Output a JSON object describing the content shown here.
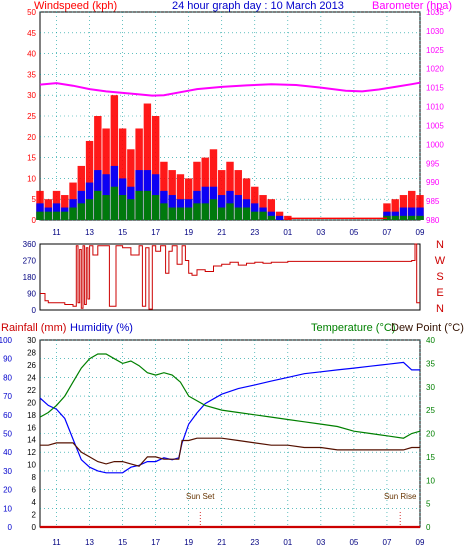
{
  "header": {
    "title": "24 hour graph day : 10 March 2013",
    "wind_label": "Windspeed (kph)",
    "baro_label": "Barometer (hpa)"
  },
  "lower_header": {
    "rain_label": "Rainfall (mm)",
    "humidity_label": "Humidity (%)",
    "temp_label": "Temperature (°C)",
    "dew_label": "Dew Point (°C)"
  },
  "colors": {
    "windspeed": "#ff0000",
    "wind_avg": "#0000ff",
    "wind_low": "#008000",
    "barometer": "#ff00ff",
    "direction": "#cc0000",
    "temperature": "#008000",
    "humidity": "#0000ff",
    "dewpoint": "#551100",
    "rain": "#cc0000",
    "grid": "#009999"
  },
  "chart_data": [
    {
      "type": "bar",
      "title": "Windspeed / Barometer",
      "xlabel": "",
      "ylabel": "Windspeed (kph)",
      "ylim": [
        0,
        50
      ],
      "y2label": "Barometer (hpa)",
      "y2lim": [
        980,
        1035
      ],
      "x_ticks": [
        "11",
        "13",
        "15",
        "17",
        "19",
        "21",
        "23",
        "01",
        "03",
        "05",
        "07",
        "09"
      ],
      "y_ticks": [
        0,
        5,
        10,
        15,
        20,
        25,
        30,
        35,
        40,
        45,
        50
      ],
      "y2_ticks": [
        980,
        985,
        990,
        995,
        1000,
        1005,
        1010,
        1015,
        1020,
        1025,
        1030,
        1035
      ],
      "grid": true,
      "x": [
        10.0,
        10.5,
        11.0,
        11.5,
        12.0,
        12.5,
        13.0,
        13.5,
        14.0,
        14.5,
        15.0,
        15.5,
        16.0,
        16.5,
        17.0,
        17.5,
        18.0,
        18.5,
        19.0,
        19.5,
        20.0,
        20.5,
        21.0,
        21.5,
        22.0,
        22.5,
        23.0,
        23.5,
        24.0,
        24.5,
        25.0,
        31.0,
        31.5,
        32.0,
        32.5,
        33.0
      ],
      "series": [
        {
          "name": "Windspeed (kph)",
          "kind": "bar",
          "values": [
            7,
            5,
            7,
            6,
            9,
            13,
            19,
            25,
            22,
            30,
            22,
            17,
            22,
            28,
            25,
            14,
            12,
            11,
            10,
            14,
            15,
            17,
            12,
            14,
            12,
            10,
            8,
            6,
            5,
            2,
            1,
            4,
            5,
            6,
            7,
            6
          ]
        },
        {
          "name": "",
          "kind": "bar",
          "values": [
            4,
            3,
            4,
            3,
            5,
            7,
            9,
            12,
            11,
            13,
            10,
            8,
            12,
            12,
            11,
            7,
            6,
            5,
            5,
            7,
            8,
            8,
            6,
            7,
            6,
            5,
            4,
            3,
            2,
            1,
            0,
            2,
            2,
            3,
            3,
            3
          ]
        },
        {
          "name": "",
          "kind": "bar",
          "values": [
            2,
            2,
            2,
            2,
            3,
            4,
            5,
            7,
            6,
            8,
            6,
            5,
            7,
            7,
            6,
            4,
            3,
            3,
            3,
            4,
            4,
            5,
            3,
            4,
            3,
            3,
            2,
            2,
            1,
            0,
            0,
            1,
            1,
            1,
            1,
            1
          ]
        }
      ],
      "barometer": {
        "x": [
          10.0,
          11.0,
          12.0,
          13.0,
          14.0,
          15.0,
          16.0,
          16.8,
          17.5,
          18.5,
          19.5,
          21.0,
          22.5,
          24.0,
          25.5,
          27.0,
          28.5,
          29.5,
          30.5,
          31.5,
          32.5,
          33.0
        ],
        "values": [
          1015.8,
          1016.2,
          1015.5,
          1014.6,
          1014.0,
          1013.6,
          1013.2,
          1012.9,
          1013.0,
          1013.8,
          1014.6,
          1015.2,
          1015.6,
          1015.9,
          1015.7,
          1015.0,
          1014.2,
          1014.0,
          1014.5,
          1015.2,
          1015.9,
          1016.3
        ]
      }
    },
    {
      "type": "line",
      "title": "Wind Direction",
      "ylim": [
        0,
        360
      ],
      "y_ticks": [
        0,
        90,
        180,
        270,
        360
      ],
      "compass_labels": [
        "N",
        "W",
        "S",
        "E",
        "N"
      ],
      "series": [
        {
          "name": "",
          "x": [
            10.0,
            10.3,
            10.5,
            11.5,
            12.0,
            12.2,
            12.3,
            12.4,
            12.5,
            12.6,
            12.7,
            12.8,
            12.9,
            13.0,
            13.2,
            13.5,
            14.0,
            14.2,
            14.6,
            15.0,
            15.5,
            16.0,
            16.2,
            16.4,
            16.6,
            16.8,
            17.0,
            17.3,
            17.6,
            17.8,
            18.0,
            18.3,
            18.6,
            18.8,
            19.0,
            19.2,
            19.5,
            20.0,
            20.5,
            21.0,
            21.5,
            22.0,
            22.5,
            23.0,
            23.5,
            24.0,
            25.0,
            27.0,
            29.0,
            31.0,
            32.5,
            32.7,
            32.8,
            33.0
          ],
          "values": [
            90,
            50,
            40,
            30,
            20,
            350,
            40,
            330,
            10,
            350,
            30,
            340,
            60,
            350,
            300,
            350,
            350,
            20,
            350,
            340,
            300,
            350,
            20,
            340,
            5,
            350,
            320,
            350,
            200,
            320,
            350,
            250,
            350,
            270,
            200,
            190,
            220,
            210,
            240,
            250,
            260,
            245,
            255,
            260,
            255,
            260,
            265,
            265,
            265,
            265,
            270,
            360,
            40,
            40
          ]
        }
      ]
    },
    {
      "type": "line",
      "title": "Rainfall / Humidity / Temperature / Dew Point",
      "ylim": [
        0,
        100
      ],
      "y_ticks": [
        0,
        10,
        20,
        30,
        40,
        50,
        60,
        70,
        80,
        90,
        100
      ],
      "rain_ticks": [
        0,
        2,
        4,
        6,
        8,
        10,
        12,
        14,
        16,
        18,
        20,
        22,
        24,
        26,
        28,
        30
      ],
      "temp_ticks": [
        0,
        5,
        10,
        15,
        20,
        25,
        30,
        35,
        40
      ],
      "events": [
        {
          "label": "Sun Set",
          "x": 19.7
        },
        {
          "label": "Sun Rise",
          "x": 31.8
        }
      ],
      "series": [
        {
          "name": "Humidity (%)",
          "axis": "humidity",
          "x": [
            10.0,
            10.5,
            11.0,
            11.5,
            12.0,
            12.5,
            13.0,
            13.5,
            14.0,
            14.5,
            15.0,
            15.5,
            16.0,
            16.5,
            17.0,
            17.5,
            18.0,
            18.4,
            18.6,
            19.0,
            19.5,
            20.0,
            21.0,
            22.0,
            23.0,
            24.0,
            25.0,
            26.0,
            27.0,
            28.0,
            29.0,
            30.0,
            31.0,
            32.0,
            32.5,
            33.0
          ],
          "values": [
            69,
            65,
            63,
            58,
            47,
            36,
            32,
            30,
            29,
            29,
            29,
            32,
            33,
            35,
            35,
            37,
            36,
            37,
            45,
            55,
            61,
            66,
            71,
            74,
            76,
            78,
            80,
            82,
            83,
            84,
            85,
            86,
            87,
            88,
            84,
            84
          ]
        },
        {
          "name": "Temperature (°C)",
          "axis": "temperature",
          "x": [
            10.0,
            10.5,
            11.0,
            11.5,
            12.0,
            12.5,
            13.0,
            13.5,
            14.0,
            14.5,
            15.0,
            15.5,
            16.0,
            16.5,
            17.0,
            17.5,
            18.0,
            18.5,
            19.0,
            20.0,
            21.0,
            22.0,
            23.0,
            24.0,
            25.0,
            26.0,
            27.0,
            28.0,
            29.0,
            30.0,
            31.0,
            32.0,
            32.5,
            33.0
          ],
          "values": [
            23.5,
            24.5,
            26,
            28,
            31,
            34,
            36,
            37,
            37,
            36,
            35,
            35.5,
            34.5,
            33,
            32.5,
            33,
            32.5,
            31,
            28,
            26,
            25,
            24.5,
            24,
            23.5,
            23,
            22.5,
            22,
            21.5,
            20.5,
            20,
            19.5,
            19,
            20,
            20.5
          ]
        },
        {
          "name": "Dew Point (°C)",
          "axis": "temperature",
          "x": [
            10.0,
            10.5,
            11.0,
            11.5,
            12.0,
            12.5,
            13.0,
            13.5,
            14.0,
            14.5,
            15.0,
            15.5,
            16.0,
            16.5,
            17.0,
            17.5,
            18.0,
            18.4,
            18.6,
            19.0,
            19.5,
            20.0,
            21.0,
            22.0,
            23.0,
            24.0,
            25.0,
            26.0,
            27.0,
            28.0,
            29.0,
            30.0,
            31.0,
            32.0,
            32.5,
            33.0
          ],
          "values": [
            17.5,
            17.5,
            18,
            18,
            18,
            16,
            15,
            14,
            13.5,
            14,
            14,
            13.5,
            13,
            15,
            15,
            14.5,
            14.5,
            14.5,
            18.5,
            18.5,
            19,
            19,
            19,
            18.5,
            18,
            17.5,
            17.5,
            17,
            17,
            16.5,
            16.5,
            16.5,
            16.5,
            16.5,
            17,
            17
          ]
        },
        {
          "name": "Rainfall (mm)",
          "axis": "rain",
          "x": [
            10.0,
            33.0
          ],
          "values": [
            0,
            0
          ]
        }
      ]
    }
  ]
}
